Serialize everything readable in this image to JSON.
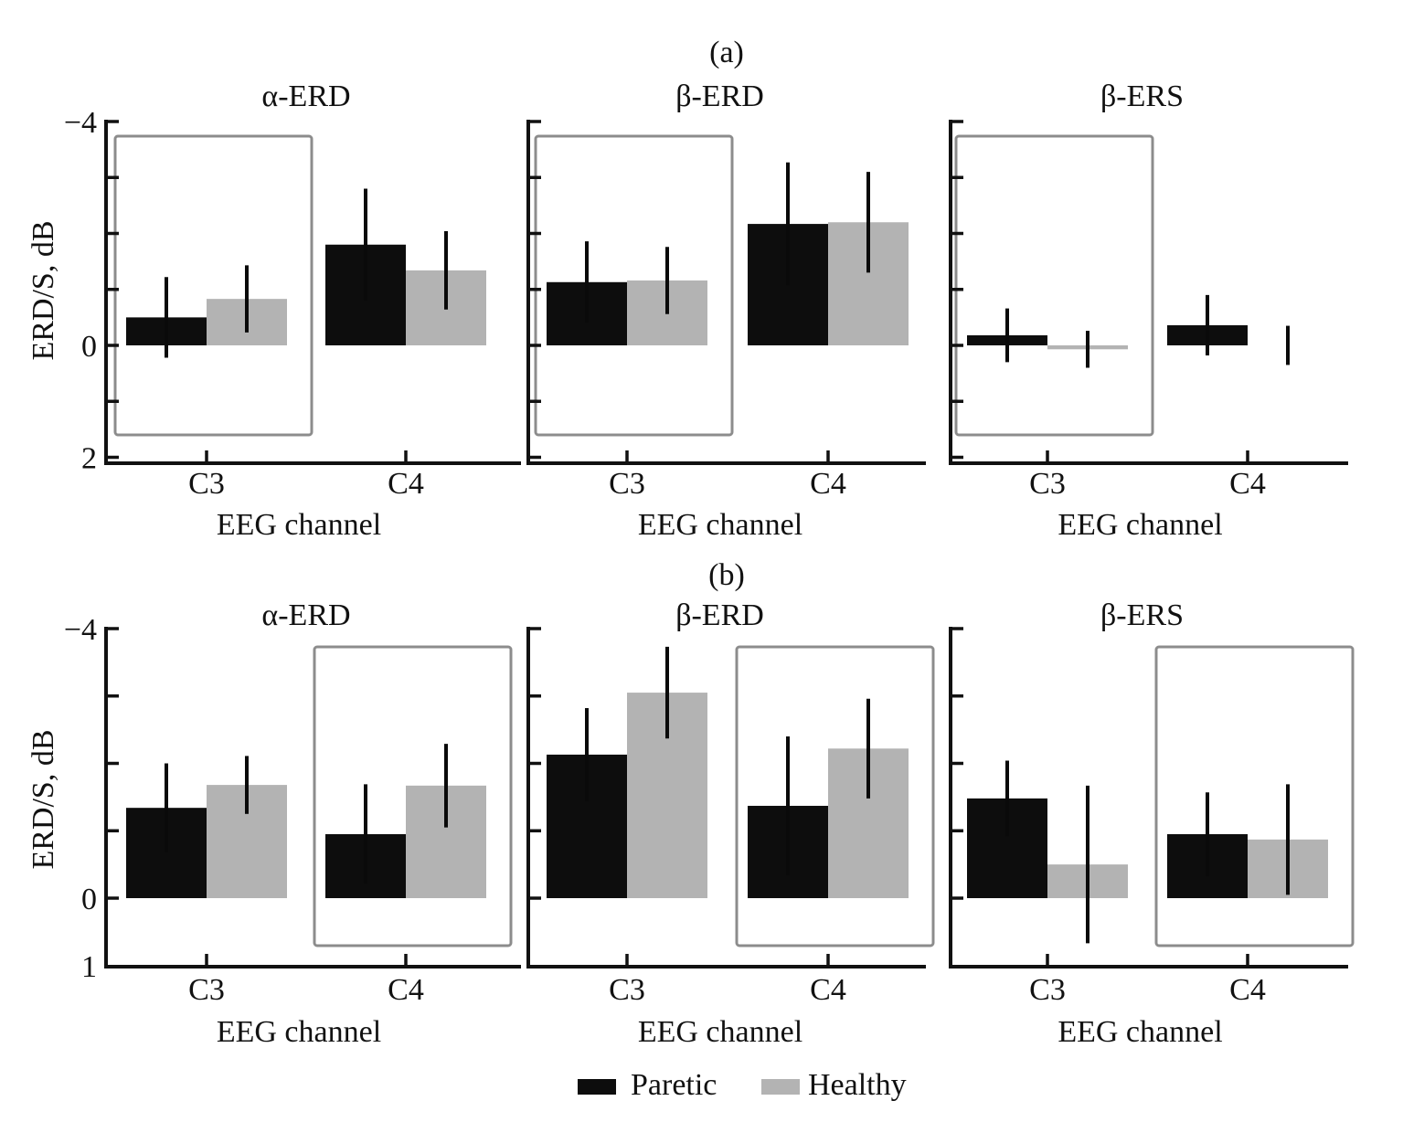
{
  "figure": {
    "legend": [
      {
        "label": "Paretic",
        "color": "#0d0d0d"
      },
      {
        "label": "Healthy",
        "color": "#b3b3b3"
      }
    ],
    "highlight_box_color": "#8c8c8c"
  },
  "chart_data": [
    {
      "group": "(a)",
      "type": "bar",
      "ylabel": "ERD/S, dB",
      "ylim": [
        2,
        -4
      ],
      "y_inverted": true,
      "yticks": [
        -4,
        -3,
        -2,
        -1,
        0,
        1,
        2
      ],
      "ytick_labels": [
        "−4",
        "",
        "",
        "",
        "0",
        "",
        "2"
      ],
      "highlighted_channel": "C3",
      "subplots": [
        {
          "title": "α-ERD",
          "xlabel": "EEG channel",
          "categories": [
            "C3",
            "C4"
          ],
          "series": [
            {
              "name": "Paretic",
              "values": [
                -0.5,
                -1.8
              ],
              "errors": [
                0.72,
                1.0
              ]
            },
            {
              "name": "Healthy",
              "values": [
                -0.83,
                -1.34
              ],
              "errors": [
                0.6,
                0.7
              ]
            }
          ]
        },
        {
          "title": "β-ERD",
          "xlabel": "EEG channel",
          "categories": [
            "C3",
            "C4"
          ],
          "series": [
            {
              "name": "Paretic",
              "values": [
                -1.13,
                -2.17
              ],
              "errors": [
                0.73,
                1.1
              ]
            },
            {
              "name": "Healthy",
              "values": [
                -1.16,
                -2.2
              ],
              "errors": [
                0.6,
                0.9
              ]
            }
          ]
        },
        {
          "title": "β-ERS",
          "xlabel": "EEG channel",
          "categories": [
            "C3",
            "C4"
          ],
          "series": [
            {
              "name": "Paretic",
              "values": [
                -0.18,
                -0.36
              ],
              "errors": [
                0.48,
                0.54
              ]
            },
            {
              "name": "Healthy",
              "values": [
                0.07,
                0.0
              ],
              "errors": [
                0.33,
                0.35
              ]
            }
          ]
        }
      ]
    },
    {
      "group": "(b)",
      "type": "bar",
      "ylabel": "ERD/S, dB",
      "ylim": [
        1,
        -4
      ],
      "y_inverted": true,
      "yticks": [
        -4,
        -3,
        -2,
        -1,
        0,
        1
      ],
      "ytick_labels": [
        "−4",
        "",
        "",
        "",
        "0",
        "1"
      ],
      "highlighted_channel": "C4",
      "subplots": [
        {
          "title": "α-ERD",
          "xlabel": "EEG channel",
          "categories": [
            "C3",
            "C4"
          ],
          "series": [
            {
              "name": "Paretic",
              "values": [
                -1.34,
                -0.95
              ],
              "errors": [
                0.66,
                0.74
              ]
            },
            {
              "name": "Healthy",
              "values": [
                -1.68,
                -1.67
              ],
              "errors": [
                0.43,
                0.62
              ]
            }
          ]
        },
        {
          "title": "β-ERD",
          "xlabel": "EEG channel",
          "categories": [
            "C3",
            "C4"
          ],
          "series": [
            {
              "name": "Paretic",
              "values": [
                -2.13,
                -1.37
              ],
              "errors": [
                0.69,
                1.03
              ]
            },
            {
              "name": "Healthy",
              "values": [
                -3.05,
                -2.22
              ],
              "errors": [
                0.68,
                0.74
              ]
            }
          ]
        },
        {
          "title": "β-ERS",
          "xlabel": "EEG channel",
          "categories": [
            "C3",
            "C4"
          ],
          "series": [
            {
              "name": "Paretic",
              "values": [
                -1.48,
                -0.95
              ],
              "errors": [
                0.56,
                0.62
              ]
            },
            {
              "name": "Healthy",
              "values": [
                -0.5,
                -0.87
              ],
              "errors": [
                1.17,
                0.82
              ]
            }
          ]
        }
      ]
    }
  ]
}
